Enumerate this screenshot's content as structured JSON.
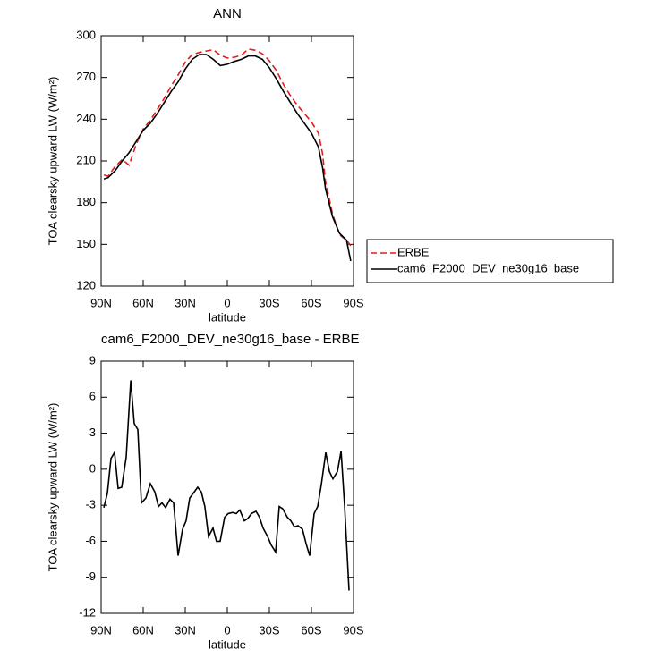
{
  "chart_data": [
    {
      "type": "line",
      "title": "ANN",
      "xlabel": "latitude",
      "ylabel": "TOA clearsky upward LW (W/m²)",
      "x": [
        88,
        85,
        80,
        75,
        70,
        65,
        60,
        55,
        50,
        45,
        40,
        35,
        30,
        25,
        20,
        15,
        10,
        5,
        0,
        -5,
        -10,
        -15,
        -20,
        -25,
        -30,
        -35,
        -40,
        -45,
        -50,
        -55,
        -60,
        -65,
        -68,
        -70,
        -75,
        -80,
        -85,
        -88
      ],
      "series": [
        {
          "name": "ERBE",
          "color": "#e41a1c",
          "dash": true,
          "values": [
            200,
            199,
            206,
            211,
            207,
            222,
            233,
            239,
            247,
            255,
            264,
            272,
            281,
            286.5,
            288,
            289,
            290,
            286,
            284,
            284.5,
            286,
            290.5,
            289.5,
            287,
            282,
            275,
            265,
            257,
            250,
            244,
            238,
            230,
            215,
            195,
            172,
            157,
            153,
            149
          ]
        },
        {
          "name": "cam6_F2000_DEV_ne30g16_base",
          "color": "#000000",
          "dash": false,
          "values": [
            197,
            198,
            203,
            210,
            216,
            224,
            232,
            237,
            244,
            252,
            260,
            267,
            276,
            283,
            286.5,
            286.5,
            283,
            278.5,
            279.5,
            281.5,
            283,
            285.5,
            285.5,
            283,
            277,
            269,
            260,
            252,
            244,
            237,
            230,
            220,
            205,
            190,
            170,
            158,
            153,
            138
          ]
        }
      ],
      "xlim": [
        90,
        -90
      ],
      "xticks": [
        {
          "value": 90,
          "label": "90N"
        },
        {
          "value": 60,
          "label": "60N"
        },
        {
          "value": 30,
          "label": "30N"
        },
        0,
        {
          "value": -30,
          "label": "30S"
        },
        {
          "value": -60,
          "label": "60S"
        },
        {
          "value": -90,
          "label": "90S"
        }
      ],
      "ylim": [
        120,
        300
      ],
      "yticks": [
        120,
        150,
        180,
        210,
        240,
        270,
        300
      ],
      "legend": "right"
    },
    {
      "type": "line",
      "title": "cam6_F2000_DEV_ne30g16_base - ERBE",
      "xlabel": "latitude",
      "ylabel": "TOA clearsky upward LW (W/m²)",
      "x": [
        88.1,
        85.5,
        83.0,
        80.4,
        77.9,
        75.3,
        72.1,
        68.9,
        66.4,
        63.8,
        61.3,
        58.1,
        54.9,
        51.7,
        49.1,
        46.6,
        44.0,
        40.9,
        38.3,
        35.1,
        31.9,
        29.4,
        26.8,
        23.6,
        21.1,
        18.5,
        16.0,
        13.4,
        10.2,
        7.7,
        5.1,
        1.9,
        -0.6,
        -3.8,
        -6.4,
        -8.9,
        -12.1,
        -14.7,
        -17.2,
        -20.4,
        -23.0,
        -25.5,
        -28.7,
        -31.3,
        -34.5,
        -37.0,
        -39.6,
        -42.8,
        -45.3,
        -47.9,
        -50.4,
        -53.6,
        -56.2,
        -58.7,
        -61.9,
        -64.5,
        -67.0,
        -70.2,
        -72.8,
        -75.3,
        -78.5,
        -81.1,
        -83.6,
        -86.8
      ],
      "color": "#000000",
      "values": [
        -3.2,
        -2.0,
        0.9,
        1.4,
        -1.6,
        -1.5,
        1.0,
        7.4,
        3.8,
        3.3,
        -2.8,
        -2.4,
        -1.2,
        -1.9,
        -3.1,
        -2.8,
        -3.2,
        -2.5,
        -2.8,
        -7.2,
        -5.0,
        -4.3,
        -2.4,
        -1.9,
        -1.5,
        -1.9,
        -3.1,
        -5.6,
        -4.9,
        -6.0,
        -6.0,
        -4.0,
        -3.7,
        -3.6,
        -3.7,
        -3.4,
        -4.3,
        -4.1,
        -3.7,
        -3.5,
        -4.0,
        -4.9,
        -5.6,
        -6.3,
        -6.9,
        -3.1,
        -3.3,
        -4.0,
        -4.3,
        -4.8,
        -4.7,
        -5.0,
        -6.2,
        -7.2,
        -3.7,
        -3.1,
        -1.3,
        1.4,
        -0.2,
        -0.8,
        -0.2,
        1.5,
        -3.0,
        -10.1
      ],
      "xlim": [
        90,
        -90
      ],
      "xticks": [
        {
          "value": 90,
          "label": "90N"
        },
        {
          "value": 60,
          "label": "60N"
        },
        {
          "value": 30,
          "label": "30N"
        },
        0,
        {
          "value": -30,
          "label": "30S"
        },
        {
          "value": -60,
          "label": "60S"
        },
        {
          "value": -90,
          "label": "90S"
        }
      ],
      "ylim": [
        -12,
        9
      ],
      "yticks": [
        -12,
        -9,
        -6,
        -3,
        0,
        3,
        6,
        9
      ]
    }
  ]
}
